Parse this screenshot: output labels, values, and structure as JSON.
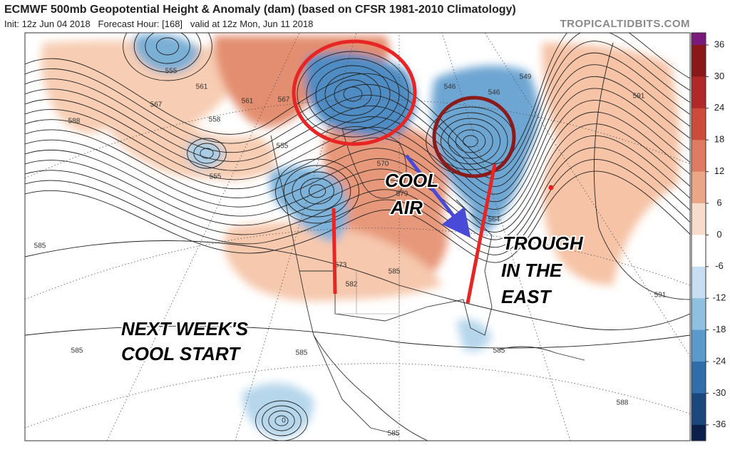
{
  "header": {
    "title": "ECMWF 500mb Geopotential Height & Anomaly (dam) (based on CFSR 1981-2010 Climatology)",
    "subtitle": "Init: 12z Jun 04 2018   Forecast Hour: [168]   valid at 12z Mon, Jun 11 2018",
    "site": "TROPICALTIDBITS.COM"
  },
  "colorbar": {
    "ticks": [
      36,
      30,
      24,
      18,
      12,
      6,
      0,
      -6,
      -12,
      -18,
      -24,
      -30,
      -36
    ]
  },
  "annotations": [
    {
      "lines": [
        "COOL",
        "AIR"
      ]
    },
    {
      "lines": [
        "TROUGH",
        "IN THE",
        "EAST"
      ]
    },
    {
      "lines": [
        "NEXT WEEK'S",
        "COOL START"
      ]
    }
  ],
  "contour_labels": [
    555,
    561,
    567,
    558,
    588,
    561,
    567,
    555,
    555,
    570,
    579,
    546,
    546,
    549,
    591,
    585,
    573,
    582,
    585,
    585,
    585,
    585,
    591,
    588,
    585,
    0,
    564
  ]
}
